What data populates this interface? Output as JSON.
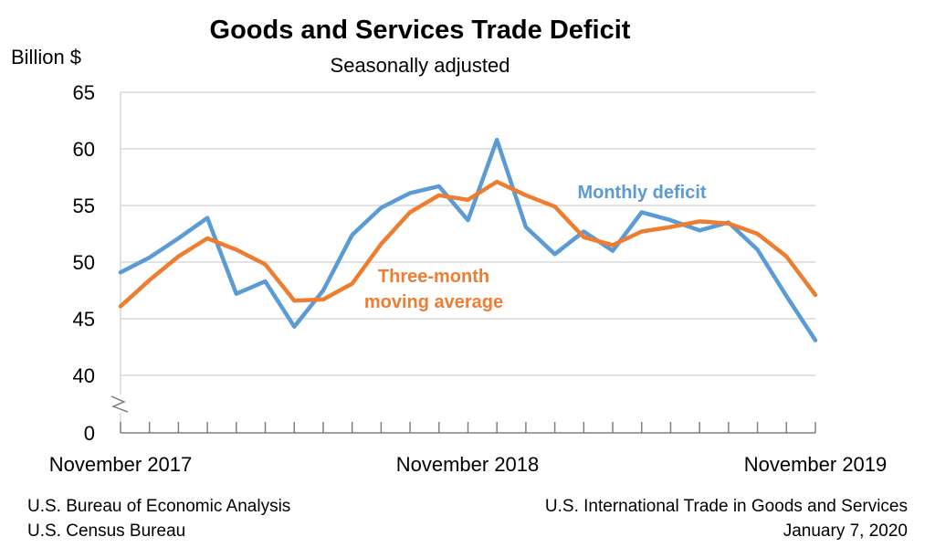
{
  "chart_data": {
    "type": "line",
    "title": "Goods and Services Trade Deficit",
    "subtitle": "Seasonally adjusted",
    "ylabel": "Billion $",
    "ylim": [
      40,
      65
    ],
    "axis_break": true,
    "y_ticks": [
      "65",
      "60",
      "55",
      "50",
      "45",
      "40",
      "0"
    ],
    "x_tick_labels": [
      "November 2017",
      "November 2018",
      "November 2019"
    ],
    "x": [
      "Nov 2017",
      "Dec 2017",
      "Jan 2018",
      "Feb 2018",
      "Mar 2018",
      "Apr 2018",
      "May 2018",
      "Jun 2018",
      "Jul 2018",
      "Aug 2018",
      "Sep 2018",
      "Oct 2018",
      "Nov 2018",
      "Dec 2018",
      "Jan 2019",
      "Feb 2019",
      "Mar 2019",
      "Apr 2019",
      "May 2019",
      "Jun 2019",
      "Jul 2019",
      "Aug 2019",
      "Sep 2019",
      "Oct 2019",
      "Nov 2019"
    ],
    "series": [
      {
        "name": "Monthly deficit",
        "color": "#5B9BD5",
        "values": [
          49.1,
          50.4,
          52.1,
          53.9,
          47.2,
          48.3,
          44.3,
          47.5,
          52.4,
          54.8,
          56.1,
          56.7,
          53.7,
          60.8,
          53.1,
          50.7,
          52.7,
          51.0,
          54.4,
          53.7,
          52.8,
          53.5,
          51.1,
          47.0,
          43.1
        ]
      },
      {
        "name": "Three-month moving average",
        "color": "#ED7D31",
        "values": [
          46.1,
          48.4,
          50.5,
          52.1,
          51.1,
          49.8,
          46.6,
          46.7,
          48.1,
          51.6,
          54.4,
          55.9,
          55.5,
          57.1,
          55.9,
          54.9,
          52.2,
          51.5,
          52.7,
          53.1,
          53.6,
          53.4,
          52.5,
          50.5,
          47.1
        ]
      }
    ],
    "grid": true,
    "legend": "inline labels"
  },
  "source": {
    "left_line1": "U.S. Bureau of Economic Analysis",
    "left_line2": "U.S. Census Bureau",
    "right_line1": "U.S. International Trade in Goods and Services",
    "right_line2": "January 7, 2020"
  }
}
